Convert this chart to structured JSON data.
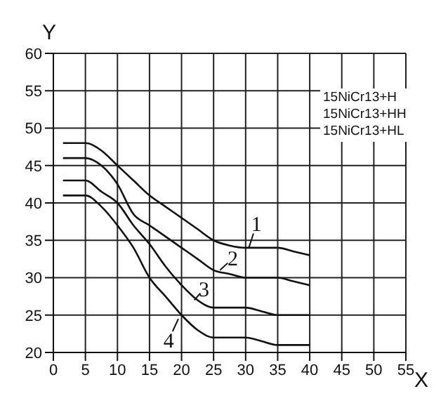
{
  "chart_data": {
    "type": "line",
    "xlabel": "X",
    "ylabel": "Y",
    "x": [
      1.5,
      5,
      7.5,
      10,
      12.5,
      15,
      17.5,
      20,
      22.5,
      25,
      27.5,
      30,
      32.5,
      35,
      37.5,
      40
    ],
    "series": [
      {
        "color": "#111111",
        "values": [
          48,
          48,
          47,
          45,
          43,
          41,
          39.5,
          38,
          36.5,
          35,
          34.3,
          34,
          34,
          34,
          33.5,
          33
        ]
      },
      {
        "color": "#111111",
        "values": [
          46,
          46,
          45,
          42.5,
          38.5,
          37,
          35.5,
          34,
          32.5,
          31,
          30.5,
          30,
          30,
          30,
          29.5,
          29
        ]
      },
      {
        "color": "#111111",
        "values": [
          43,
          43,
          41.5,
          40,
          37,
          34.5,
          31.5,
          29,
          27,
          26,
          26,
          26,
          25.5,
          25,
          25,
          25
        ]
      },
      {
        "color": "#111111",
        "values": [
          41,
          41,
          39.5,
          37,
          34,
          30,
          27.5,
          25,
          23,
          22,
          22,
          22,
          21.5,
          21,
          21,
          21
        ]
      }
    ],
    "annotations": [
      {
        "text": "1",
        "x": 30.5,
        "y": 34
      },
      {
        "text": "2",
        "x": 26,
        "y": 31
      },
      {
        "text": "3",
        "x": 22,
        "y": 27
      },
      {
        "text": "4",
        "x": 19.5,
        "y": 24.5
      },
      "15NiCr13+H",
      "15NiCr13+HH",
      "15NiCr13+HL"
    ],
    "xlim": [
      0,
      55
    ],
    "xticks": [
      0,
      5,
      10,
      15,
      20,
      25,
      30,
      35,
      40,
      45,
      50,
      55
    ],
    "ylim": [
      20,
      60
    ],
    "yticks": [
      20,
      25,
      30,
      35,
      40,
      45,
      50,
      55,
      60
    ],
    "grid": true,
    "marker": "none",
    "line_style": "solid"
  }
}
